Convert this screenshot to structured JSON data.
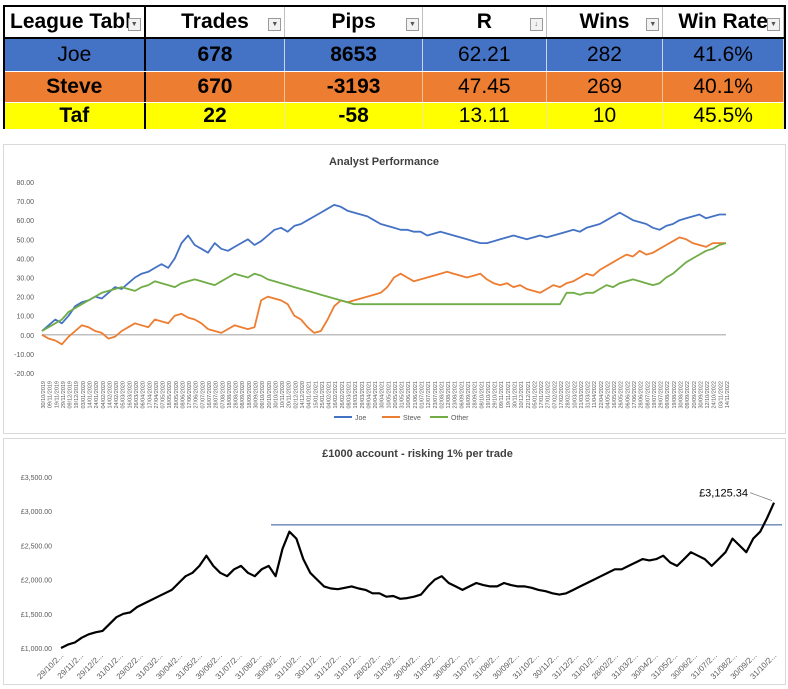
{
  "league_table": {
    "headers": [
      "League Tabl",
      "Trades",
      "Pips",
      "R",
      "Wins",
      "Win Rate"
    ],
    "sort_indicator": "R",
    "rows": [
      {
        "name": "Joe",
        "trades": "678",
        "pips": "8653",
        "r": "62.21",
        "wins": "282",
        "win_rate": "41.6%",
        "color": "#4472c4"
      },
      {
        "name": "Steve",
        "trades": "670",
        "pips": "-3193",
        "r": "47.45",
        "wins": "269",
        "win_rate": "40.1%",
        "color": "#ed7d31"
      },
      {
        "name": "Taf",
        "trades": "22",
        "pips": "-58",
        "r": "13.11",
        "wins": "10",
        "win_rate": "45.5%",
        "color": "#ffff00"
      }
    ]
  },
  "chart_data": [
    {
      "type": "line",
      "title": "Analyst Performance",
      "ylim": [
        -20,
        80
      ],
      "yticks": [
        "80.00",
        "70.00",
        "60.00",
        "50.00",
        "40.00",
        "30.00",
        "20.00",
        "10.00",
        "0.00",
        "-10.00",
        "-20.00"
      ],
      "grid": false,
      "legend_placement": "bottom",
      "x_labels": [
        "30/10/2019",
        "09/11/2019",
        "19/11/2019",
        "29/11/2019",
        "09/12/2019",
        "19/12/2019",
        "03/01/2020",
        "14/01/2020",
        "24/01/2020",
        "04/02/2020",
        "14/02/2020",
        "24/02/2020",
        "05/03/2020",
        "16/03/2020",
        "26/03/2020",
        "06/04/2020",
        "17/04/2020",
        "27/04/2020",
        "07/05/2020",
        "18/05/2020",
        "28/05/2020",
        "08/06/2020",
        "17/06/2020",
        "27/06/2020",
        "07/07/2020",
        "16/07/2020",
        "28/07/2020",
        "07/08/2020",
        "18/08/2020",
        "28/08/2020",
        "08/09/2020",
        "18/09/2020",
        "30/09/2020",
        "09/10/2020",
        "20/10/2020",
        "30/10/2020",
        "10/11/2020",
        "20/11/2020",
        "02/12/2020",
        "14/12/2020",
        "04/01/2021",
        "15/01/2021",
        "25/01/2021",
        "04/02/2021",
        "16/02/2021",
        "26/02/2021",
        "08/03/2021",
        "19/03/2021",
        "29/03/2021",
        "09/04/2021",
        "20/04/2021",
        "30/04/2021",
        "10/05/2021",
        "20/05/2021",
        "31/05/2021",
        "10/06/2021",
        "21/06/2021",
        "01/07/2021",
        "12/07/2021",
        "23/07/2021",
        "02/08/2021",
        "12/08/2021",
        "23/08/2021",
        "06/09/2021",
        "16/09/2021",
        "28/09/2021",
        "08/10/2021",
        "19/10/2021",
        "29/10/2021",
        "09/11/2021",
        "19/11/2021",
        "30/11/2021",
        "10/12/2021",
        "22/12/2021",
        "05/01/2022",
        "17/01/2022",
        "27/01/2022",
        "07/02/2022",
        "17/02/2022",
        "28/02/2022",
        "10/03/2022",
        "21/03/2022",
        "31/03/2022",
        "11/04/2022",
        "22/04/2022",
        "04/05/2022",
        "16/05/2022",
        "26/05/2022",
        "06/06/2022",
        "17/06/2022",
        "28/06/2022",
        "08/07/2022",
        "19/07/2022",
        "29/07/2022",
        "09/08/2022",
        "19/08/2022",
        "30/08/2022",
        "09/09/2022",
        "20/09/2022",
        "30/09/2022",
        "12/10/2022",
        "24/10/2022",
        "03/11/2022",
        "14/11/2022"
      ],
      "x": [
        0,
        2,
        4,
        6,
        8,
        10,
        12,
        14,
        16,
        18,
        20,
        22,
        24,
        26,
        28,
        30,
        32,
        34,
        36,
        38,
        40,
        42,
        44,
        46,
        48,
        50,
        52,
        54,
        56,
        58,
        60,
        62,
        64,
        66,
        68,
        70,
        72,
        74,
        76,
        78,
        80,
        82,
        84,
        86,
        88,
        90,
        92,
        94,
        96,
        98,
        100,
        102,
        104,
        106,
        108,
        110,
        112,
        114,
        116,
        118,
        120,
        122,
        124,
        126,
        128,
        130,
        132,
        134,
        136,
        138,
        140,
        142,
        144,
        146,
        148,
        150,
        152,
        154,
        156,
        158,
        160,
        162,
        164,
        166,
        168,
        170,
        172,
        174,
        176,
        178,
        180,
        182,
        184,
        186,
        188,
        190,
        192,
        194,
        196,
        198,
        200,
        202,
        204,
        206
      ],
      "series": [
        {
          "name": "Joe",
          "color": "#4472c4",
          "values": [
            2,
            5,
            8,
            6,
            10,
            15,
            17,
            18,
            20,
            19,
            22,
            25,
            24,
            27,
            30,
            32,
            33,
            35,
            37,
            35,
            40,
            48,
            52,
            47,
            45,
            43,
            48,
            45,
            44,
            46,
            48,
            50,
            47,
            49,
            52,
            55,
            56,
            54,
            57,
            58,
            60,
            62,
            64,
            66,
            68,
            67,
            65,
            64,
            63,
            62,
            60,
            58,
            57,
            56,
            55,
            55,
            54,
            54,
            52,
            53,
            54,
            53,
            52,
            51,
            50,
            49,
            48,
            48,
            49,
            50,
            51,
            52,
            51,
            50,
            51,
            52,
            51,
            52,
            53,
            54,
            55,
            54,
            56,
            57,
            58,
            60,
            62,
            64,
            62,
            60,
            59,
            58,
            56,
            55,
            57,
            58,
            60,
            61,
            62,
            63,
            61,
            62,
            63,
            63
          ]
        },
        {
          "name": "Steve",
          "color": "#ed7d31",
          "values": [
            0,
            -2,
            -3,
            -5,
            -1,
            2,
            5,
            4,
            2,
            1,
            -2,
            -1,
            2,
            4,
            6,
            5,
            4,
            8,
            7,
            6,
            10,
            11,
            9,
            8,
            6,
            3,
            2,
            1,
            3,
            5,
            4,
            3,
            4,
            18,
            20,
            19,
            18,
            16,
            10,
            8,
            4,
            1,
            2,
            8,
            15,
            18,
            17,
            18,
            19,
            20,
            21,
            22,
            25,
            30,
            32,
            30,
            28,
            29,
            30,
            31,
            32,
            33,
            32,
            31,
            30,
            31,
            32,
            29,
            27,
            26,
            27,
            25,
            26,
            24,
            23,
            22,
            24,
            26,
            25,
            27,
            28,
            30,
            32,
            31,
            34,
            36,
            38,
            40,
            42,
            41,
            44,
            42,
            43,
            45,
            47,
            49,
            51,
            50,
            48,
            47,
            46,
            48,
            48,
            48
          ]
        },
        {
          "name": "Other",
          "color": "#70ad47",
          "values": [
            2,
            4,
            6,
            8,
            12,
            14,
            16,
            18,
            20,
            22,
            23,
            24,
            25,
            24,
            23,
            25,
            26,
            28,
            27,
            26,
            25,
            27,
            28,
            29,
            28,
            27,
            26,
            28,
            30,
            32,
            31,
            30,
            32,
            31,
            29,
            28,
            27,
            26,
            25,
            24,
            23,
            22,
            21,
            20,
            19,
            18,
            17,
            16,
            16,
            16,
            16,
            16,
            16,
            16,
            16,
            16,
            16,
            16,
            16,
            16,
            16,
            16,
            16,
            16,
            16,
            16,
            16,
            16,
            16,
            16,
            16,
            16,
            16,
            16,
            16,
            16,
            16,
            16,
            16,
            22,
            22,
            21,
            22,
            22,
            24,
            26,
            25,
            27,
            28,
            29,
            28,
            27,
            26,
            27,
            30,
            32,
            35,
            38,
            40,
            42,
            44,
            45,
            47,
            48
          ]
        }
      ]
    },
    {
      "type": "line",
      "title": "£1000 account - risking 1% per trade",
      "ylim": [
        1000,
        3500
      ],
      "yticks": [
        "£3,500.00",
        "£3,000.00",
        "£2,500.00",
        "£2,000.00",
        "£1,500.00",
        "£1,000.00"
      ],
      "grid": false,
      "annotation": "£3,125.34",
      "reference_line": 2800,
      "x_labels": [
        "29/10/2...",
        "29/11/2...",
        "29/12/2...",
        "31/01/2...",
        "29/02/2...",
        "31/03/2...",
        "30/04/2...",
        "31/05/2...",
        "30/06/2...",
        "31/07/2...",
        "31/08/2...",
        "30/09/2...",
        "31/10/2...",
        "30/11/2...",
        "31/12/2...",
        "31/01/2...",
        "28/02/2...",
        "31/03/2...",
        "30/04/2...",
        "31/05/2...",
        "30/06/2...",
        "31/07/2...",
        "31/08/2...",
        "30/09/2...",
        "31/10/2...",
        "30/11/2...",
        "31/12/2...",
        "31/01/2...",
        "28/02/2...",
        "31/03/2...",
        "30/04/2...",
        "31/05/2...",
        "30/06/2...",
        "31/07/2...",
        "31/08/2...",
        "30/09/2...",
        "31/10/2..."
      ],
      "x": [
        0,
        2,
        4,
        6,
        8,
        10,
        12,
        14,
        16,
        18,
        20,
        22,
        24,
        26,
        28,
        30,
        32,
        34,
        36,
        38,
        40,
        42,
        44,
        46,
        48,
        50,
        52,
        54,
        56,
        58,
        60,
        62,
        64,
        66,
        68,
        70,
        72,
        74,
        76,
        78,
        80,
        82,
        84,
        86,
        88,
        90,
        92,
        94,
        96,
        98,
        100,
        102,
        104,
        106,
        108,
        110,
        112,
        114,
        116,
        118,
        120,
        122,
        124,
        126,
        128,
        130,
        132,
        134,
        136,
        138,
        140,
        142,
        144,
        146,
        148,
        150,
        152,
        154,
        156,
        158,
        160,
        162,
        164,
        166,
        168,
        170,
        172,
        174,
        176,
        178,
        180,
        182,
        184,
        186,
        188,
        190,
        192,
        194,
        196,
        198,
        200,
        202,
        204,
        206
      ],
      "series": [
        {
          "name": "Account",
          "color": "#000000",
          "values": [
            1000,
            1050,
            1080,
            1150,
            1200,
            1230,
            1250,
            1350,
            1450,
            1500,
            1520,
            1600,
            1650,
            1700,
            1750,
            1800,
            1850,
            1950,
            2050,
            2100,
            2200,
            2350,
            2200,
            2100,
            2050,
            2150,
            2200,
            2100,
            2050,
            2150,
            2200,
            2050,
            2450,
            2700,
            2600,
            2300,
            2100,
            2000,
            1900,
            1870,
            1860,
            1880,
            1900,
            1870,
            1850,
            1800,
            1800,
            1750,
            1760,
            1720,
            1730,
            1750,
            1780,
            1900,
            2000,
            2050,
            1950,
            1900,
            1850,
            1900,
            1950,
            1920,
            1900,
            1900,
            1950,
            1920,
            1900,
            1900,
            1880,
            1850,
            1830,
            1800,
            1780,
            1800,
            1850,
            1900,
            1950,
            2000,
            2050,
            2100,
            2150,
            2150,
            2200,
            2250,
            2300,
            2280,
            2300,
            2350,
            2250,
            2200,
            2300,
            2400,
            2350,
            2300,
            2200,
            2300,
            2400,
            2600,
            2500,
            2400,
            2600,
            2700,
            2900,
            3125
          ]
        }
      ]
    }
  ]
}
